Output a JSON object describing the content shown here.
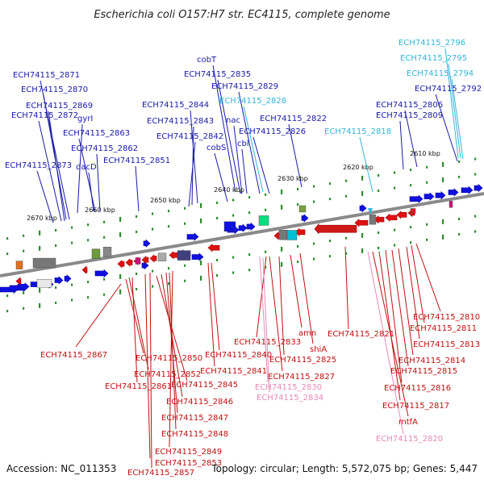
{
  "title": "Escherichia coli O157:H7 str. EC4115, complete genome",
  "footer": {
    "accession": "Accession: NC_011353",
    "summary": "Topology: circular; Length: 5,572,075 bp; Genes: 5,447"
  },
  "colors": {
    "forward_cds": "#1010e0",
    "forward_label": "#1a1aa8",
    "forward_rna_label": "#33b5d8",
    "reverse_cds": "#e01010",
    "reverse_label": "#c01010",
    "reverse_pseudo_label": "#e58ab8",
    "backbone": "#888888",
    "tick": "#2e8b2e"
  },
  "kbp_labels": [
    "2610 kbp",
    "2620 kbp",
    "2630 kbp",
    "2640 kbp",
    "2650 kbp",
    "2660 kbp",
    "2670 kbp"
  ],
  "forward_labels": [
    {
      "text": "ECH74115_2796",
      "color": "#33b5d8"
    },
    {
      "text": "ECH74115_2795",
      "color": "#33b5d8"
    },
    {
      "text": "ECH74115_2794",
      "color": "#33b5d8"
    },
    {
      "text": "ECH74115_2792",
      "color": "#1a1aa8"
    },
    {
      "text": "ECH74115_2806",
      "color": "#1a1aa8"
    },
    {
      "text": "ECH74115_2809",
      "color": "#1a1aa8"
    },
    {
      "text": "ECH74115_2818",
      "color": "#33b5d8"
    },
    {
      "text": "ECH74115_2822",
      "color": "#1a1aa8"
    },
    {
      "text": "ECH74115_2826",
      "color": "#1a1aa8"
    },
    {
      "text": "ECH74115_2828",
      "color": "#33b5d8"
    },
    {
      "text": "ECH74115_2829",
      "color": "#1a1aa8"
    },
    {
      "text": "ECH74115_2835",
      "color": "#1a1aa8"
    },
    {
      "text": "cobT",
      "color": "#1a1aa8"
    },
    {
      "text": "nac",
      "color": "#1a1aa8"
    },
    {
      "text": "cbl",
      "color": "#1a1aa8"
    },
    {
      "text": "cobS",
      "color": "#1a1aa8"
    },
    {
      "text": "ECH74115_2844",
      "color": "#1a1aa8"
    },
    {
      "text": "ECH74115_2843",
      "color": "#1a1aa8"
    },
    {
      "text": "ECH74115_2842",
      "color": "#1a1aa8"
    },
    {
      "text": "ECH74115_2851",
      "color": "#1a1aa8"
    },
    {
      "text": "ECH74115_2862",
      "color": "#1a1aa8"
    },
    {
      "text": "ECH74115_2863",
      "color": "#1a1aa8"
    },
    {
      "text": "dacD",
      "color": "#1a1aa8"
    },
    {
      "text": "gyrI",
      "color": "#1a1aa8"
    },
    {
      "text": "ECH74115_2871",
      "color": "#1a1aa8"
    },
    {
      "text": "ECH74115_2870",
      "color": "#1a1aa8"
    },
    {
      "text": "ECH74115_2869",
      "color": "#1a1aa8"
    },
    {
      "text": "ECH74115_2872",
      "color": "#1a1aa8"
    },
    {
      "text": "ECH74115_2873",
      "color": "#1a1aa8"
    }
  ],
  "reverse_labels": [
    {
      "text": "ECH74115_2867",
      "color": "#c01010"
    },
    {
      "text": "ECH74115_2850",
      "color": "#c01010"
    },
    {
      "text": "ECH74115_2852",
      "color": "#c01010"
    },
    {
      "text": "ECH74115_2861",
      "color": "#c01010"
    },
    {
      "text": "ECH74115_2845",
      "color": "#c01010"
    },
    {
      "text": "ECH74115_2846",
      "color": "#c01010"
    },
    {
      "text": "ECH74115_2847",
      "color": "#c01010"
    },
    {
      "text": "ECH74115_2848",
      "color": "#c01010"
    },
    {
      "text": "ECH74115_2849",
      "color": "#c01010"
    },
    {
      "text": "ECH74115_2853",
      "color": "#c01010"
    },
    {
      "text": "ECH74115_2857",
      "color": "#c01010"
    },
    {
      "text": "ECH74115_2840",
      "color": "#c01010"
    },
    {
      "text": "ECH74115_2841",
      "color": "#c01010"
    },
    {
      "text": "ECH74115_2833",
      "color": "#c01010"
    },
    {
      "text": "ECH74115_2825",
      "color": "#c01010"
    },
    {
      "text": "ECH74115_2827",
      "color": "#c01010"
    },
    {
      "text": "ECH74115_2830",
      "color": "#e58ab8"
    },
    {
      "text": "ECH74115_2834",
      "color": "#e58ab8"
    },
    {
      "text": "amn",
      "color": "#c01010"
    },
    {
      "text": "shiA",
      "color": "#c01010"
    },
    {
      "text": "ECH74115_2821",
      "color": "#c01010"
    },
    {
      "text": "ECH74115_2810",
      "color": "#c01010"
    },
    {
      "text": "ECH74115_2811",
      "color": "#c01010"
    },
    {
      "text": "ECH74115_2813",
      "color": "#c01010"
    },
    {
      "text": "ECH74115_2814",
      "color": "#c01010"
    },
    {
      "text": "ECH74115_2815",
      "color": "#c01010"
    },
    {
      "text": "ECH74115_2816",
      "color": "#c01010"
    },
    {
      "text": "ECH74115_2817",
      "color": "#c01010"
    },
    {
      "text": "mtfA",
      "color": "#c01010"
    },
    {
      "text": "ECH74115_2820",
      "color": "#e58ab8"
    }
  ]
}
